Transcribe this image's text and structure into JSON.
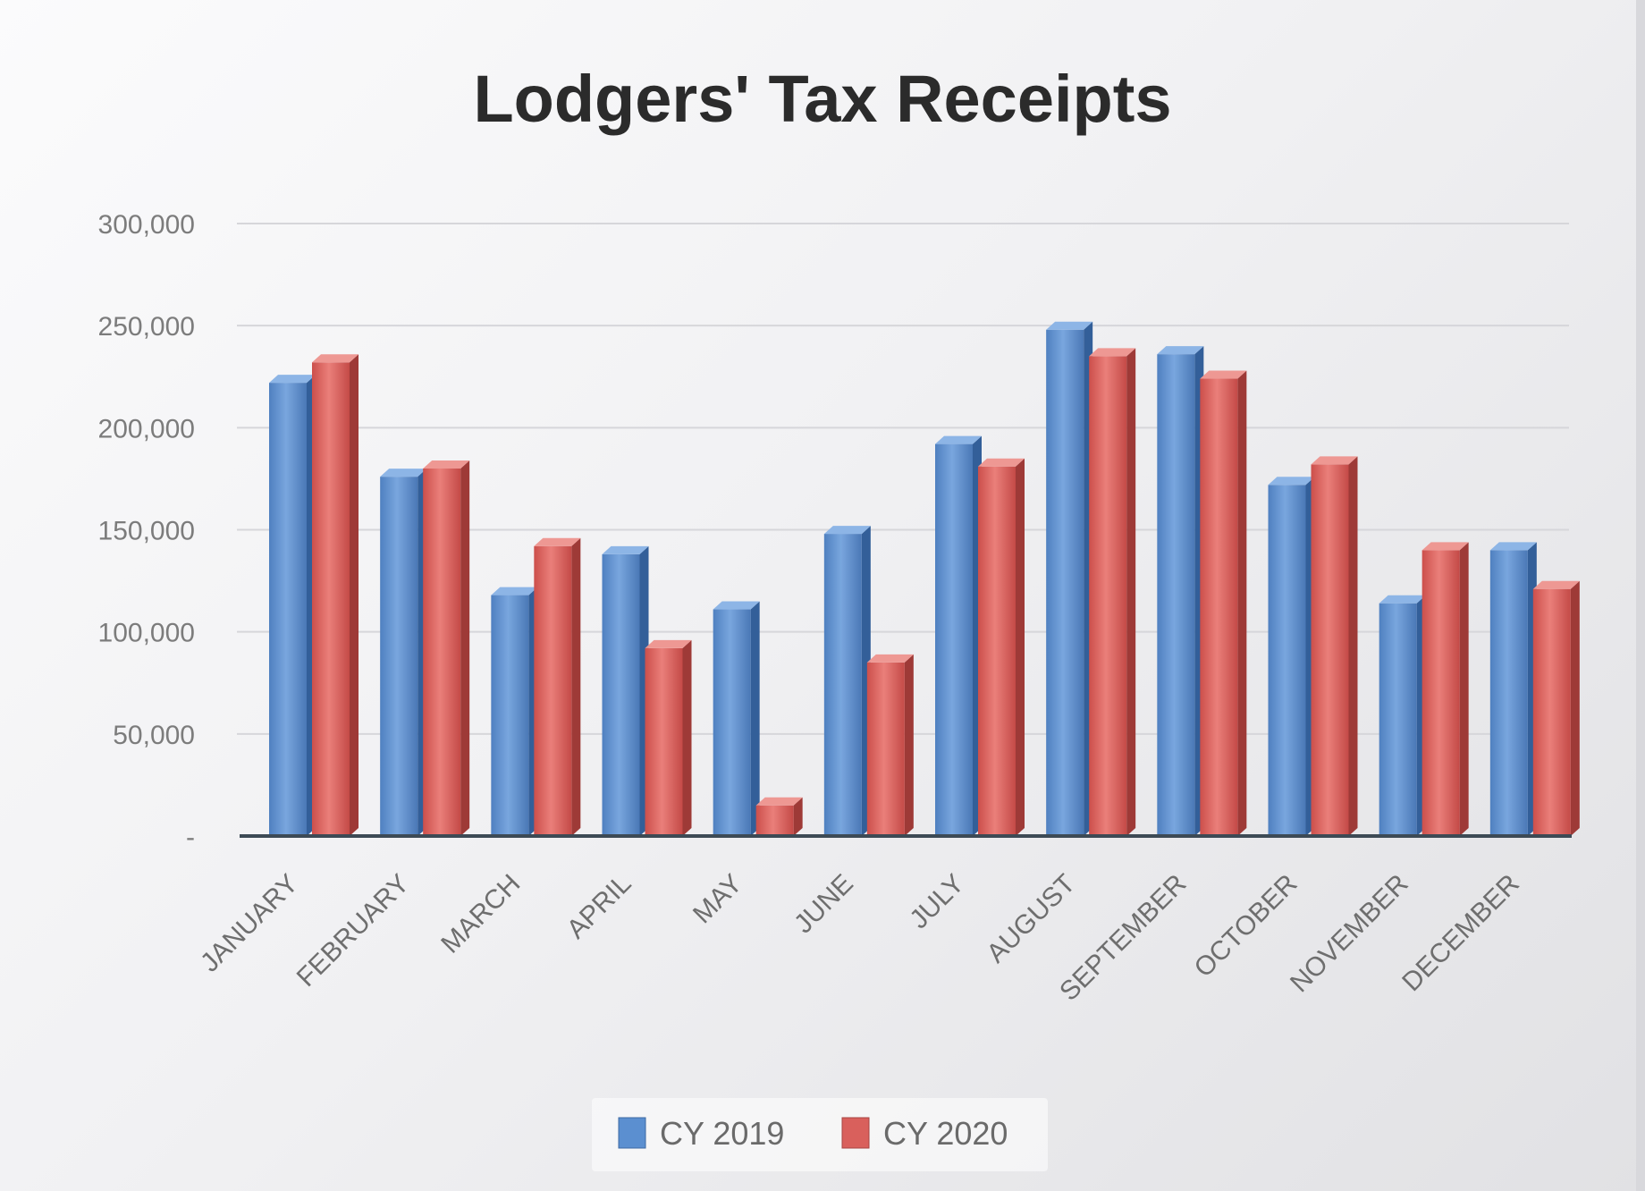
{
  "chart_data": {
    "type": "bar",
    "title": "Lodgers' Tax Receipts",
    "xlabel": "",
    "ylabel": "",
    "categories": [
      "JANUARY",
      "FEBRUARY",
      "MARCH",
      "APRIL",
      "MAY",
      "JUNE",
      "JULY",
      "AUGUST",
      "SEPTEMBER",
      "OCTOBER",
      "NOVEMBER",
      "DECEMBER"
    ],
    "series": [
      {
        "name": "CY 2019",
        "color": "#5b8fd0",
        "values": [
          222000,
          176000,
          118000,
          138000,
          111000,
          148000,
          192000,
          248000,
          236000,
          172000,
          114000,
          140000
        ]
      },
      {
        "name": "CY 2020",
        "color": "#d9605c",
        "values": [
          232000,
          180000,
          142000,
          92000,
          15000,
          85000,
          181000,
          235000,
          224000,
          182000,
          140000,
          121000
        ]
      }
    ],
    "ylim": [
      0,
      300000
    ],
    "yticks": [
      0,
      50000,
      100000,
      150000,
      200000,
      250000,
      300000
    ],
    "ytick_labels": [
      "-",
      "50,000",
      "100,000",
      "150,000",
      "200,000",
      "250,000",
      "300,000"
    ],
    "grid": true,
    "legend_position": "bottom"
  }
}
